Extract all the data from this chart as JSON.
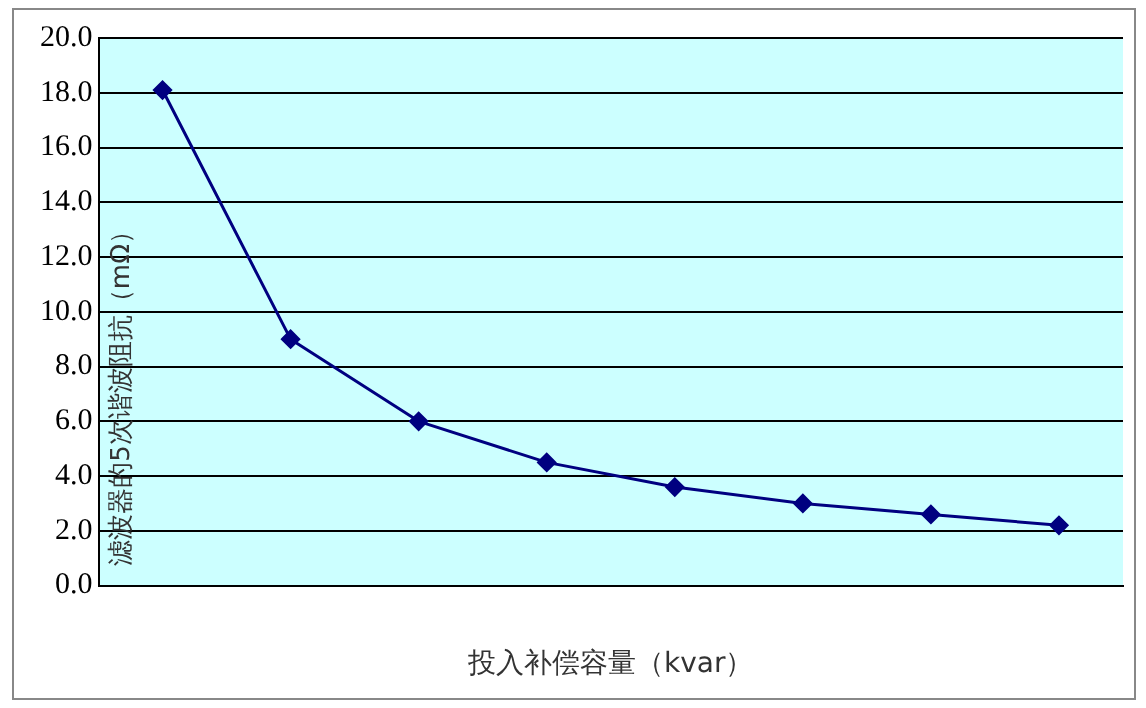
{
  "chart_data": {
    "type": "line",
    "xlabel": "投入补偿容量（kvar）",
    "ylabel": "滤波器的5次谐波阻抗（mΩ）",
    "categories": [
      null,
      null,
      null,
      null,
      null,
      null,
      null,
      null
    ],
    "series": [
      {
        "color": "#000080",
        "values": [
          18.1,
          9.0,
          6.0,
          4.5,
          3.6,
          3.0,
          2.6,
          2.2
        ]
      }
    ],
    "ylim": [
      0,
      20
    ],
    "yticks": [
      {
        "value": 0,
        "label": "0.0"
      },
      {
        "value": 2,
        "label": "2.0"
      },
      {
        "value": 4,
        "label": "4.0"
      },
      {
        "value": 6,
        "label": "6.0"
      },
      {
        "value": 8,
        "label": "8.0"
      },
      {
        "value": 10,
        "label": "10.0"
      },
      {
        "value": 12,
        "label": "12.0"
      },
      {
        "value": 14,
        "label": "14.0"
      },
      {
        "value": 16,
        "label": "16.0"
      },
      {
        "value": 18,
        "label": "18.0"
      },
      {
        "value": 20,
        "label": "20.0"
      }
    ],
    "grid": "y",
    "legend": false,
    "marker": "diamond",
    "line_style": "solid"
  }
}
